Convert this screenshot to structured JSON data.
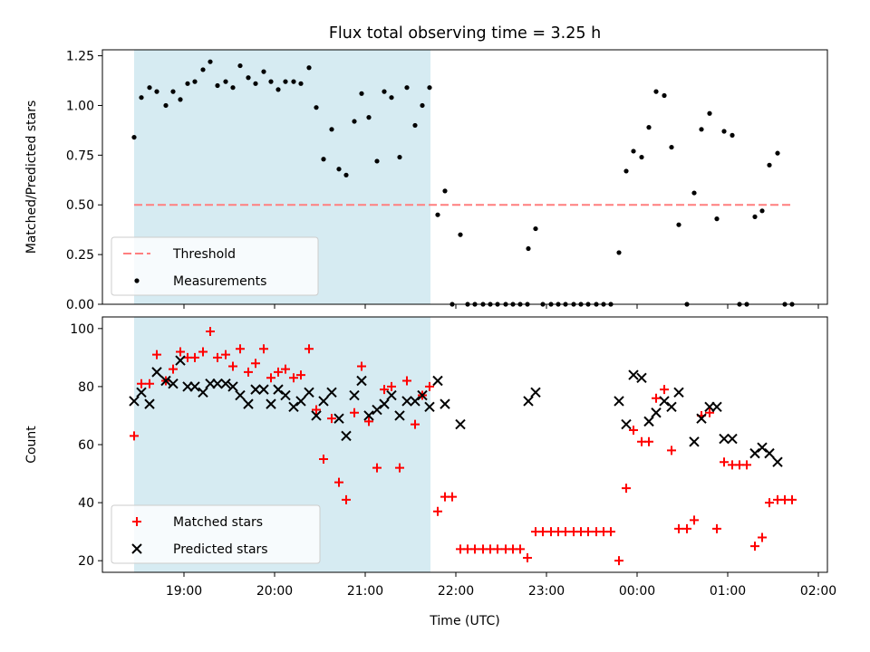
{
  "title": "Flux total observing time = 3.25 h",
  "colors": {
    "threshold": "#ff7f7f",
    "measurement": "#000000",
    "matched": "#ff0000",
    "predicted": "#000000",
    "shade": "#add8e6"
  },
  "chart_data": [
    {
      "type": "scatter",
      "ylabel": "Matched/Predicted stars",
      "ylim": [
        0,
        1.28
      ],
      "yticks": [
        0,
        0.25,
        0.5,
        0.75,
        1.0,
        1.25
      ],
      "ytick_labels": [
        "0.00",
        "0.25",
        "0.50",
        "0.75",
        "1.00",
        "1.25"
      ],
      "xlim": [
        18.1,
        26.1
      ],
      "xticks": [
        19,
        20,
        21,
        22,
        23,
        24,
        25,
        26
      ],
      "shade_range": [
        18.45,
        21.72
      ],
      "threshold": {
        "value": 0.5,
        "x_range": [
          18.45,
          25.72
        ]
      },
      "legend": {
        "position": "lower-left",
        "entries": [
          "Threshold",
          "Measurements"
        ]
      },
      "series": [
        {
          "name": "Measurements",
          "marker": "dot",
          "points": [
            [
              18.45,
              0.84
            ],
            [
              18.53,
              1.04
            ],
            [
              18.62,
              1.09
            ],
            [
              18.7,
              1.07
            ],
            [
              18.8,
              1.0
            ],
            [
              18.88,
              1.07
            ],
            [
              18.96,
              1.03
            ],
            [
              19.04,
              1.11
            ],
            [
              19.12,
              1.12
            ],
            [
              19.21,
              1.18
            ],
            [
              19.29,
              1.22
            ],
            [
              19.37,
              1.1
            ],
            [
              19.46,
              1.12
            ],
            [
              19.54,
              1.09
            ],
            [
              19.62,
              1.2
            ],
            [
              19.71,
              1.14
            ],
            [
              19.79,
              1.11
            ],
            [
              19.88,
              1.17
            ],
            [
              19.96,
              1.12
            ],
            [
              20.04,
              1.08
            ],
            [
              20.12,
              1.12
            ],
            [
              20.21,
              1.12
            ],
            [
              20.29,
              1.11
            ],
            [
              20.38,
              1.19
            ],
            [
              20.46,
              0.99
            ],
            [
              20.54,
              0.73
            ],
            [
              20.63,
              0.88
            ],
            [
              20.71,
              0.68
            ],
            [
              20.79,
              0.65
            ],
            [
              20.88,
              0.92
            ],
            [
              20.96,
              1.06
            ],
            [
              21.04,
              0.94
            ],
            [
              21.13,
              0.72
            ],
            [
              21.21,
              1.07
            ],
            [
              21.29,
              1.04
            ],
            [
              21.38,
              0.74
            ],
            [
              21.46,
              1.09
            ],
            [
              21.55,
              0.9
            ],
            [
              21.63,
              1.0
            ],
            [
              21.71,
              1.09
            ],
            [
              21.8,
              0.45
            ],
            [
              21.88,
              0.57
            ],
            [
              21.96,
              0.0
            ],
            [
              22.05,
              0.35
            ],
            [
              22.13,
              0.0
            ],
            [
              22.21,
              0.0
            ],
            [
              22.3,
              0.0
            ],
            [
              22.38,
              0.0
            ],
            [
              22.46,
              0.0
            ],
            [
              22.55,
              0.0
            ],
            [
              22.63,
              0.0
            ],
            [
              22.71,
              0.0
            ],
            [
              22.79,
              0.0
            ],
            [
              22.8,
              0.28
            ],
            [
              22.88,
              0.38
            ],
            [
              22.96,
              0.0
            ],
            [
              23.05,
              0.0
            ],
            [
              23.13,
              0.0
            ],
            [
              23.21,
              0.0
            ],
            [
              23.3,
              0.0
            ],
            [
              23.38,
              0.0
            ],
            [
              23.46,
              0.0
            ],
            [
              23.55,
              0.0
            ],
            [
              23.63,
              0.0
            ],
            [
              23.71,
              0.0
            ],
            [
              23.8,
              0.26
            ],
            [
              23.88,
              0.67
            ],
            [
              23.96,
              0.77
            ],
            [
              24.05,
              0.74
            ],
            [
              24.13,
              0.89
            ],
            [
              24.21,
              1.07
            ],
            [
              24.3,
              1.05
            ],
            [
              24.38,
              0.79
            ],
            [
              24.46,
              0.4
            ],
            [
              24.55,
              0.0
            ],
            [
              24.63,
              0.56
            ],
            [
              24.71,
              0.88
            ],
            [
              24.8,
              0.96
            ],
            [
              24.88,
              0.43
            ],
            [
              24.96,
              0.87
            ],
            [
              25.05,
              0.85
            ],
            [
              25.13,
              0.0
            ],
            [
              25.21,
              0.0
            ],
            [
              25.3,
              0.44
            ],
            [
              25.38,
              0.47
            ],
            [
              25.46,
              0.7
            ],
            [
              25.55,
              0.76
            ],
            [
              25.63,
              0.0
            ],
            [
              25.71,
              0.0
            ]
          ]
        }
      ]
    },
    {
      "type": "scatter",
      "xlabel": "Time (UTC)",
      "ylabel": "Count",
      "ylim": [
        16,
        104
      ],
      "yticks": [
        20,
        40,
        60,
        80,
        100
      ],
      "ytick_labels": [
        "20",
        "40",
        "60",
        "80",
        "100"
      ],
      "xlim": [
        18.1,
        26.1
      ],
      "xticks": [
        19,
        20,
        21,
        22,
        23,
        24,
        25,
        26
      ],
      "xtick_labels": [
        "19:00",
        "20:00",
        "21:00",
        "22:00",
        "23:00",
        "00:00",
        "01:00",
        "02:00"
      ],
      "shade_range": [
        18.45,
        21.72
      ],
      "legend": {
        "position": "lower-left",
        "entries": [
          "Matched stars",
          "Predicted stars"
        ]
      },
      "series": [
        {
          "name": "Matched stars",
          "marker": "plus",
          "points": [
            [
              18.45,
              63
            ],
            [
              18.53,
              81
            ],
            [
              18.62,
              81
            ],
            [
              18.7,
              91
            ],
            [
              18.8,
              82
            ],
            [
              18.88,
              86
            ],
            [
              18.96,
              92
            ],
            [
              19.04,
              90
            ],
            [
              19.12,
              90
            ],
            [
              19.21,
              92
            ],
            [
              19.29,
              99
            ],
            [
              19.37,
              90
            ],
            [
              19.46,
              91
            ],
            [
              19.54,
              87
            ],
            [
              19.62,
              93
            ],
            [
              19.71,
              85
            ],
            [
              19.79,
              88
            ],
            [
              19.88,
              93
            ],
            [
              19.96,
              83
            ],
            [
              20.04,
              85
            ],
            [
              20.12,
              86
            ],
            [
              20.21,
              83
            ],
            [
              20.29,
              84
            ],
            [
              20.38,
              93
            ],
            [
              20.46,
              72
            ],
            [
              20.54,
              55
            ],
            [
              20.63,
              69
            ],
            [
              20.71,
              47
            ],
            [
              20.79,
              41
            ],
            [
              20.88,
              71
            ],
            [
              20.96,
              87
            ],
            [
              21.04,
              68
            ],
            [
              21.13,
              52
            ],
            [
              21.21,
              79
            ],
            [
              21.29,
              80
            ],
            [
              21.38,
              52
            ],
            [
              21.46,
              82
            ],
            [
              21.55,
              67
            ],
            [
              21.63,
              77
            ],
            [
              21.71,
              80
            ],
            [
              21.8,
              37
            ],
            [
              21.88,
              42
            ],
            [
              21.96,
              42
            ],
            [
              22.05,
              24
            ],
            [
              22.13,
              24
            ],
            [
              22.21,
              24
            ],
            [
              22.3,
              24
            ],
            [
              22.38,
              24
            ],
            [
              22.46,
              24
            ],
            [
              22.55,
              24
            ],
            [
              22.63,
              24
            ],
            [
              22.71,
              24
            ],
            [
              22.79,
              21
            ],
            [
              22.88,
              30
            ],
            [
              22.96,
              30
            ],
            [
              23.05,
              30
            ],
            [
              23.13,
              30
            ],
            [
              23.21,
              30
            ],
            [
              23.3,
              30
            ],
            [
              23.38,
              30
            ],
            [
              23.46,
              30
            ],
            [
              23.55,
              30
            ],
            [
              23.63,
              30
            ],
            [
              23.71,
              30
            ],
            [
              23.8,
              20
            ],
            [
              23.88,
              45
            ],
            [
              23.96,
              65
            ],
            [
              24.05,
              61
            ],
            [
              24.13,
              61
            ],
            [
              24.21,
              76
            ],
            [
              24.3,
              79
            ],
            [
              24.38,
              58
            ],
            [
              24.46,
              31
            ],
            [
              24.55,
              31
            ],
            [
              24.63,
              34
            ],
            [
              24.71,
              70
            ],
            [
              24.8,
              71
            ],
            [
              24.88,
              31
            ],
            [
              24.96,
              54
            ],
            [
              25.05,
              53
            ],
            [
              25.13,
              53
            ],
            [
              25.21,
              53
            ],
            [
              25.3,
              25
            ],
            [
              25.38,
              28
            ],
            [
              25.46,
              40
            ],
            [
              25.55,
              41
            ],
            [
              25.63,
              41
            ],
            [
              25.71,
              41
            ]
          ]
        },
        {
          "name": "Predicted stars",
          "marker": "x",
          "points": [
            [
              18.45,
              75
            ],
            [
              18.53,
              78
            ],
            [
              18.62,
              74
            ],
            [
              18.7,
              85
            ],
            [
              18.8,
              82
            ],
            [
              18.88,
              81
            ],
            [
              18.96,
              89
            ],
            [
              19.04,
              80
            ],
            [
              19.12,
              80
            ],
            [
              19.21,
              78
            ],
            [
              19.29,
              81
            ],
            [
              19.37,
              81
            ],
            [
              19.46,
              81
            ],
            [
              19.54,
              80
            ],
            [
              19.62,
              77
            ],
            [
              19.71,
              74
            ],
            [
              19.79,
              79
            ],
            [
              19.88,
              79
            ],
            [
              19.96,
              74
            ],
            [
              20.04,
              79
            ],
            [
              20.12,
              77
            ],
            [
              20.21,
              73
            ],
            [
              20.29,
              75
            ],
            [
              20.38,
              78
            ],
            [
              20.46,
              70
            ],
            [
              20.54,
              75
            ],
            [
              20.63,
              78
            ],
            [
              20.71,
              69
            ],
            [
              20.79,
              63
            ],
            [
              20.88,
              77
            ],
            [
              20.96,
              82
            ],
            [
              21.04,
              70
            ],
            [
              21.13,
              72
            ],
            [
              21.21,
              74
            ],
            [
              21.29,
              77
            ],
            [
              21.38,
              70
            ],
            [
              21.46,
              75
            ],
            [
              21.55,
              75
            ],
            [
              21.63,
              77
            ],
            [
              21.71,
              73
            ],
            [
              21.8,
              82
            ],
            [
              21.88,
              74
            ],
            [
              22.05,
              67
            ],
            [
              22.8,
              75
            ],
            [
              22.88,
              78
            ],
            [
              23.8,
              75
            ],
            [
              23.88,
              67
            ],
            [
              23.96,
              84
            ],
            [
              24.05,
              83
            ],
            [
              24.13,
              68
            ],
            [
              24.21,
              71
            ],
            [
              24.3,
              75
            ],
            [
              24.38,
              73
            ],
            [
              24.46,
              78
            ],
            [
              24.63,
              61
            ],
            [
              24.71,
              69
            ],
            [
              24.8,
              73
            ],
            [
              24.88,
              73
            ],
            [
              24.96,
              62
            ],
            [
              25.05,
              62
            ],
            [
              25.3,
              57
            ],
            [
              25.38,
              59
            ],
            [
              25.46,
              57
            ],
            [
              25.55,
              54
            ]
          ]
        }
      ]
    }
  ]
}
